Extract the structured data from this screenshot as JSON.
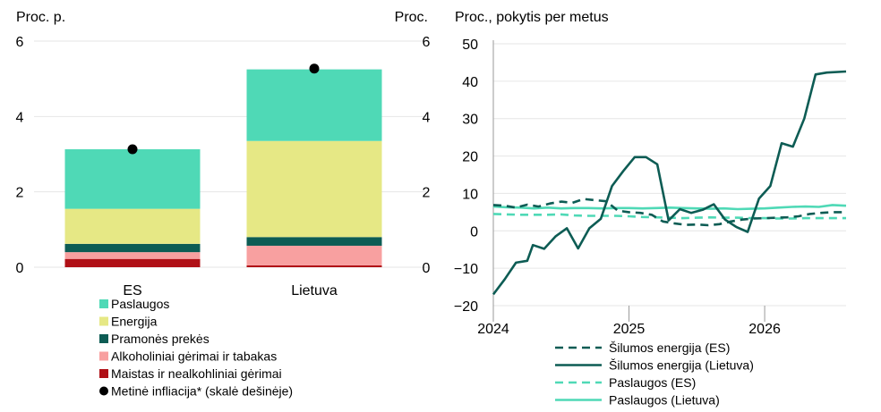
{
  "colors": {
    "services": "#4fd9b6",
    "energy": "#e6e885",
    "industrial": "#0d5c54",
    "alcohol": "#f8a0a0",
    "food": "#b01016",
    "dot": "#000000",
    "heat_eu": "#0d5c54",
    "heat_lt": "#0d5c54",
    "serv_eu": "#4fd9b6",
    "serv_lt": "#4fd9b6",
    "grid": "#e6e6e6"
  },
  "chart_data": [
    {
      "type": "bar",
      "stacked": true,
      "left_axis_title": "Proc. p.",
      "right_axis_title": "Proc.",
      "ylim": [
        0,
        6
      ],
      "yticks": [
        "0",
        "2",
        "4",
        "6"
      ],
      "categories": [
        "ES",
        "Lietuva"
      ],
      "series": [
        {
          "key": "food",
          "name": "Maistas ir nealkohliniai gėrimai",
          "values": [
            0.22,
            0.05
          ]
        },
        {
          "key": "alcohol",
          "name": "Alkoholiniai gėrimai ir tabakas",
          "values": [
            0.18,
            0.52
          ]
        },
        {
          "key": "industrial",
          "name": "Pramonės prekės",
          "values": [
            0.22,
            0.23
          ]
        },
        {
          "key": "energy",
          "name": "Energija",
          "values": [
            0.93,
            2.55
          ]
        },
        {
          "key": "services",
          "name": "Paslaugos",
          "values": [
            1.58,
            1.9
          ]
        }
      ],
      "annual_inflation": {
        "name": "Metinė infliacija* (skalė dešinėje)",
        "values": [
          3.13,
          5.27
        ]
      },
      "legend_order": [
        "services",
        "energy",
        "industrial",
        "alcohol",
        "food",
        "dot"
      ],
      "legend_position": "bottom",
      "grid": true
    },
    {
      "type": "line",
      "title": "Proc., pokytis per metus",
      "ylim": [
        -20,
        50
      ],
      "yticks": [
        "50",
        "40",
        "30",
        "20",
        "10",
        "0",
        "−10",
        "−20"
      ],
      "xlim": [
        2024.0,
        2026.6
      ],
      "xticks": [
        "2024",
        "2025",
        "2026"
      ],
      "series": [
        {
          "key": "heat_eu",
          "name": "Šilumos energija (ES)",
          "dash": true,
          "points": [
            [
              2024.0,
              6.9
            ],
            [
              2024.083,
              6.7
            ],
            [
              2024.167,
              6.2
            ],
            [
              2024.25,
              7.0
            ],
            [
              2024.333,
              6.5
            ],
            [
              2024.417,
              7.3
            ],
            [
              2024.5,
              7.8
            ],
            [
              2024.583,
              7.5
            ],
            [
              2024.667,
              8.5
            ],
            [
              2024.75,
              8.2
            ],
            [
              2024.833,
              7.9
            ],
            [
              2024.917,
              5.4
            ],
            [
              2025.0,
              5.0
            ],
            [
              2025.083,
              4.8
            ],
            [
              2025.167,
              4.3
            ],
            [
              2025.25,
              2.5
            ],
            [
              2025.333,
              2.0
            ],
            [
              2025.417,
              1.6
            ],
            [
              2025.5,
              1.7
            ],
            [
              2025.583,
              1.5
            ],
            [
              2025.667,
              1.8
            ],
            [
              2025.75,
              2.5
            ],
            [
              2025.833,
              3.0
            ],
            [
              2025.917,
              3.3
            ],
            [
              2026.0,
              3.4
            ],
            [
              2026.083,
              3.5
            ],
            [
              2026.167,
              3.6
            ],
            [
              2026.25,
              3.9
            ],
            [
              2026.333,
              4.5
            ],
            [
              2026.417,
              4.8
            ],
            [
              2026.5,
              5.0
            ],
            [
              2026.6,
              5.0
            ]
          ]
        },
        {
          "key": "heat_lt",
          "name": "Šilumos energija (Lietuva)",
          "dash": false,
          "points": [
            [
              2024.0,
              -17.0
            ],
            [
              2024.083,
              -13.0
            ],
            [
              2024.167,
              -8.5
            ],
            [
              2024.25,
              -8.0
            ],
            [
              2024.292,
              -3.8
            ],
            [
              2024.375,
              -4.8
            ],
            [
              2024.458,
              -1.5
            ],
            [
              2024.542,
              0.7
            ],
            [
              2024.625,
              -4.7
            ],
            [
              2024.708,
              0.7
            ],
            [
              2024.792,
              3.2
            ],
            [
              2024.875,
              12.0
            ],
            [
              2024.958,
              16.0
            ],
            [
              2025.042,
              19.7
            ],
            [
              2025.125,
              19.7
            ],
            [
              2025.208,
              17.8
            ],
            [
              2025.292,
              2.8
            ],
            [
              2025.375,
              5.8
            ],
            [
              2025.458,
              4.8
            ],
            [
              2025.542,
              5.6
            ],
            [
              2025.625,
              7.1
            ],
            [
              2025.708,
              3.0
            ],
            [
              2025.792,
              1.0
            ],
            [
              2025.875,
              -0.3
            ],
            [
              2025.958,
              8.6
            ],
            [
              2026.042,
              12.0
            ],
            [
              2026.125,
              23.4
            ],
            [
              2026.208,
              22.5
            ],
            [
              2026.292,
              30.0
            ],
            [
              2026.375,
              41.8
            ],
            [
              2026.458,
              42.3
            ],
            [
              2026.6,
              42.6
            ]
          ]
        },
        {
          "key": "serv_eu",
          "name": "Paslaugos (ES)",
          "dash": true,
          "points": [
            [
              2024.0,
              4.5
            ],
            [
              2024.1,
              4.4
            ],
            [
              2024.2,
              4.3
            ],
            [
              2024.3,
              4.3
            ],
            [
              2024.4,
              4.3
            ],
            [
              2024.5,
              4.4
            ],
            [
              2024.6,
              4.1
            ],
            [
              2024.7,
              4.0
            ],
            [
              2024.8,
              4.0
            ],
            [
              2024.9,
              4.0
            ],
            [
              2025.0,
              3.9
            ],
            [
              2025.1,
              3.7
            ],
            [
              2025.2,
              3.6
            ],
            [
              2025.3,
              3.5
            ],
            [
              2025.4,
              3.4
            ],
            [
              2025.5,
              3.5
            ],
            [
              2025.6,
              3.6
            ],
            [
              2025.7,
              3.5
            ],
            [
              2025.8,
              3.5
            ],
            [
              2025.9,
              3.4
            ],
            [
              2026.0,
              3.4
            ],
            [
              2026.1,
              3.3
            ],
            [
              2026.2,
              3.3
            ],
            [
              2026.3,
              3.4
            ],
            [
              2026.4,
              3.4
            ],
            [
              2026.5,
              3.4
            ],
            [
              2026.6,
              3.4
            ]
          ]
        },
        {
          "key": "serv_lt",
          "name": "Paslaugos (Lietuva)",
          "dash": false,
          "points": [
            [
              2024.0,
              6.5
            ],
            [
              2024.1,
              6.3
            ],
            [
              2024.2,
              6.2
            ],
            [
              2024.3,
              6.0
            ],
            [
              2024.4,
              6.2
            ],
            [
              2024.5,
              6.0
            ],
            [
              2024.6,
              6.1
            ],
            [
              2024.7,
              6.1
            ],
            [
              2024.8,
              6.0
            ],
            [
              2024.9,
              6.1
            ],
            [
              2025.0,
              6.1
            ],
            [
              2025.1,
              6.0
            ],
            [
              2025.2,
              6.1
            ],
            [
              2025.3,
              6.2
            ],
            [
              2025.4,
              6.1
            ],
            [
              2025.5,
              6.0
            ],
            [
              2025.6,
              5.9
            ],
            [
              2025.7,
              6.0
            ],
            [
              2025.8,
              5.8
            ],
            [
              2025.9,
              5.9
            ],
            [
              2026.0,
              6.0
            ],
            [
              2026.1,
              6.2
            ],
            [
              2026.2,
              6.4
            ],
            [
              2026.3,
              6.5
            ],
            [
              2026.4,
              6.4
            ],
            [
              2026.5,
              6.9
            ],
            [
              2026.6,
              6.7
            ]
          ]
        }
      ],
      "legend_position": "bottom",
      "grid": true
    }
  ]
}
